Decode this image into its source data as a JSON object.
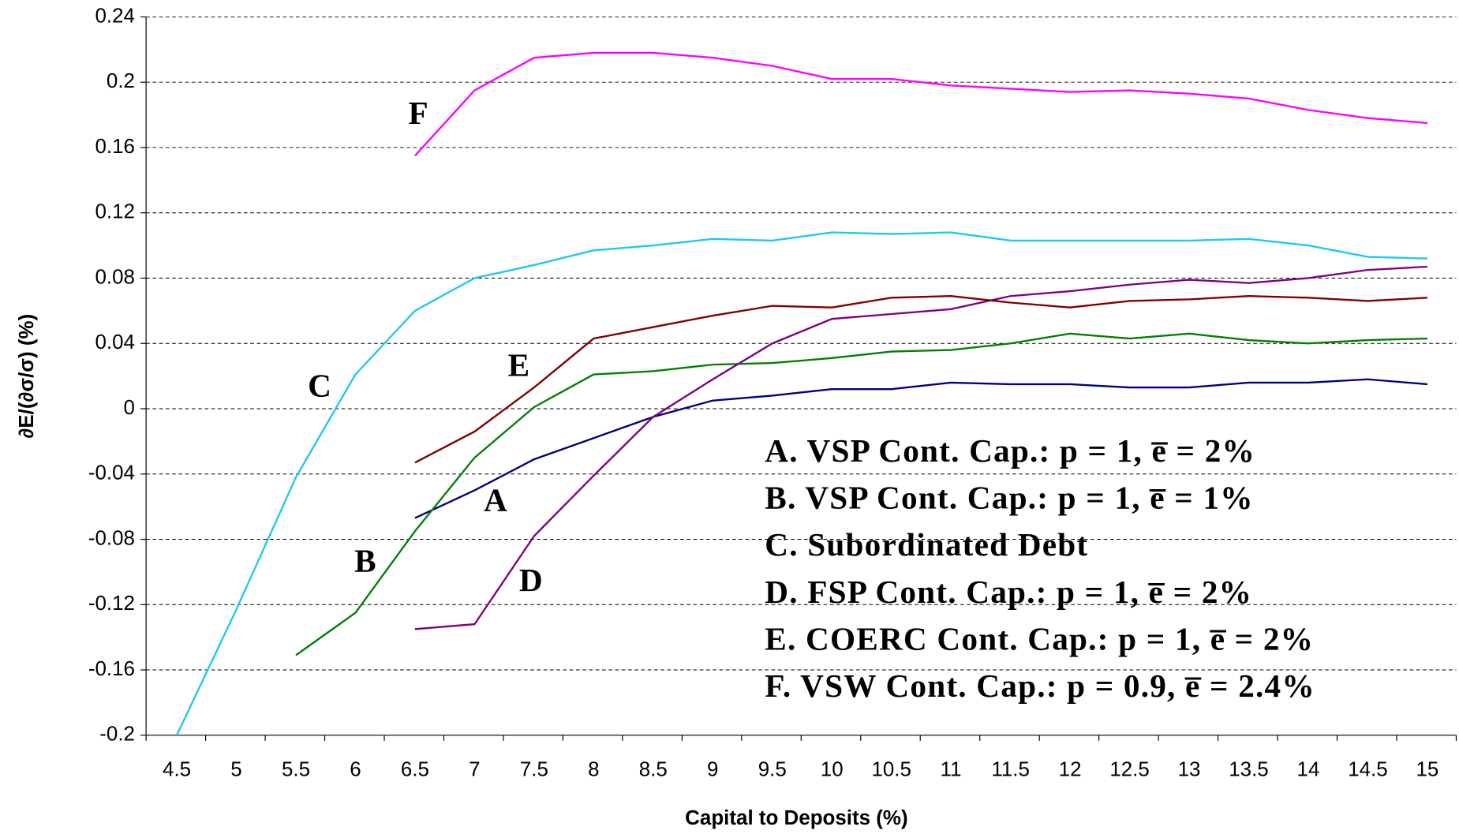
{
  "chart_data": {
    "type": "line",
    "x_label": "Capital to Deposits (%)",
    "y_label": "∂E/(∂σ/σ) (%)",
    "categories": [
      "4.5",
      "5",
      "5.5",
      "6",
      "6.5",
      "7",
      "7.5",
      "8",
      "8.5",
      "9",
      "9.5",
      "10",
      "10.5",
      "11",
      "11.5",
      "12",
      "12.5",
      "13",
      "13.5",
      "14",
      "14.5",
      "15"
    ],
    "ylim": [
      -0.2,
      0.24
    ],
    "yticks": [
      -0.2,
      -0.16,
      -0.12,
      -0.08,
      -0.04,
      0,
      0.04,
      0.08,
      0.12,
      0.16,
      0.2,
      0.24
    ],
    "grid": true,
    "series": [
      {
        "name": "A. VSP Cont. Cap.: p = 1, e̅ = 2%",
        "label": "A",
        "color": "#000080",
        "values": [
          null,
          null,
          null,
          null,
          -0.067,
          -0.05,
          -0.031,
          -0.018,
          -0.005,
          0.005,
          0.008,
          0.012,
          0.012,
          0.016,
          0.015,
          0.015,
          0.013,
          0.013,
          0.016,
          0.016,
          0.018,
          0.015
        ]
      },
      {
        "name": "B. VSP Cont. Cap.: p = 1, e̅ = 1%",
        "label": "B",
        "color": "#008000",
        "values": [
          null,
          null,
          -0.151,
          -0.125,
          -0.075,
          -0.03,
          0.001,
          0.021,
          0.023,
          0.027,
          0.028,
          0.031,
          0.035,
          0.036,
          0.04,
          0.046,
          0.043,
          0.046,
          0.042,
          0.04,
          0.042,
          0.043
        ]
      },
      {
        "name": "C. Subordinated Debt",
        "label": "C",
        "color": "#1ec8f0",
        "values": [
          -0.2,
          -0.123,
          -0.042,
          0.021,
          0.06,
          0.08,
          0.088,
          0.097,
          0.1,
          0.104,
          0.103,
          0.108,
          0.107,
          0.108,
          0.103,
          0.103,
          0.103,
          0.103,
          0.104,
          0.1,
          0.093,
          0.092
        ]
      },
      {
        "name": "D. FSP Cont. Cap.: p = 1, e̅ = 2%",
        "label": "D",
        "color": "#800080",
        "values": [
          null,
          null,
          null,
          null,
          -0.135,
          -0.132,
          -0.078,
          -0.041,
          -0.005,
          0.018,
          0.04,
          0.055,
          0.058,
          0.061,
          0.069,
          0.072,
          0.076,
          0.079,
          0.077,
          0.08,
          0.085,
          0.087
        ]
      },
      {
        "name": "E. COERC Cont. Cap.: p = 1, e̅ = 2%",
        "label": "E",
        "color": "#800000",
        "values": [
          null,
          null,
          null,
          null,
          -0.033,
          -0.014,
          0.013,
          0.043,
          0.05,
          0.057,
          0.063,
          0.062,
          0.068,
          0.069,
          0.065,
          0.062,
          0.066,
          0.067,
          0.069,
          0.068,
          0.066,
          0.068
        ]
      },
      {
        "name": "F. VSW Cont. Cap.: p = 0.9, e̅ = 2.4%",
        "label": "F",
        "color": "#ff00ff",
        "values": [
          null,
          null,
          null,
          null,
          0.155,
          0.195,
          0.215,
          0.218,
          0.218,
          0.215,
          0.21,
          0.202,
          0.202,
          0.198,
          0.196,
          0.194,
          0.195,
          0.193,
          0.19,
          0.183,
          0.178,
          0.175
        ]
      }
    ]
  }
}
